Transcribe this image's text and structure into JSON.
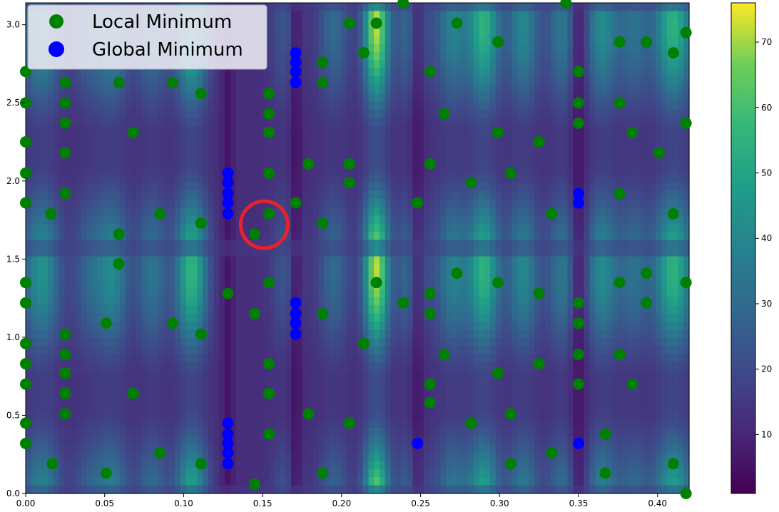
{
  "chart_data": {
    "type": "heatmap",
    "title": "",
    "xlabel": "",
    "ylabel": "",
    "xlim": [
      0.0,
      0.42
    ],
    "ylim": [
      0.0,
      3.14
    ],
    "xticks": [
      0.0,
      0.05,
      0.1,
      0.15,
      0.2,
      0.25,
      0.3,
      0.35,
      0.4
    ],
    "xtick_labels": [
      "0.00",
      "0.05",
      "0.10",
      "0.15",
      "0.20",
      "0.25",
      "0.30",
      "0.35",
      "0.40"
    ],
    "yticks": [
      0.0,
      0.5,
      1.0,
      1.5,
      2.0,
      2.5,
      3.0
    ],
    "ytick_labels": [
      "0.0",
      "0.5",
      "1.0",
      "1.5",
      "2.0",
      "2.5",
      "3.0"
    ],
    "colorbar": {
      "colormap": "viridis",
      "range": [
        1,
        76
      ],
      "ticks": [
        10,
        20,
        30,
        40,
        50,
        60,
        70
      ],
      "tick_labels": [
        "10",
        "20",
        "30",
        "40",
        "50",
        "60",
        "70"
      ]
    },
    "legend": {
      "placement": "top-left",
      "entries": [
        {
          "label": "Local Minimum",
          "color": "#008000"
        },
        {
          "label": "Global Minimum",
          "color": "#0000ff"
        }
      ]
    },
    "series": [
      {
        "name": "Local Minimum",
        "color": "#008000",
        "points": [
          [
            0.0,
            2.7
          ],
          [
            0.0,
            2.5
          ],
          [
            0.0,
            2.25
          ],
          [
            0.0,
            2.05
          ],
          [
            0.0,
            1.86
          ],
          [
            0.0,
            1.35
          ],
          [
            0.0,
            1.22
          ],
          [
            0.0,
            0.96
          ],
          [
            0.0,
            0.83
          ],
          [
            0.0,
            0.7
          ],
          [
            0.0,
            0.45
          ],
          [
            0.0,
            0.32
          ],
          [
            0.016,
            1.79
          ],
          [
            0.017,
            0.19
          ],
          [
            0.025,
            2.63
          ],
          [
            0.025,
            2.5
          ],
          [
            0.025,
            2.37
          ],
          [
            0.025,
            2.18
          ],
          [
            0.025,
            1.92
          ],
          [
            0.025,
            1.02
          ],
          [
            0.025,
            0.89
          ],
          [
            0.025,
            0.77
          ],
          [
            0.025,
            0.64
          ],
          [
            0.025,
            0.51
          ],
          [
            0.051,
            1.09
          ],
          [
            0.051,
            0.13
          ],
          [
            0.059,
            2.63
          ],
          [
            0.059,
            1.66
          ],
          [
            0.059,
            1.47
          ],
          [
            0.068,
            2.31
          ],
          [
            0.068,
            0.64
          ],
          [
            0.085,
            1.79
          ],
          [
            0.085,
            0.26
          ],
          [
            0.093,
            2.63
          ],
          [
            0.093,
            1.09
          ],
          [
            0.111,
            2.56
          ],
          [
            0.111,
            1.73
          ],
          [
            0.111,
            1.02
          ],
          [
            0.111,
            0.19
          ],
          [
            0.128,
            1.28
          ],
          [
            0.145,
            1.66
          ],
          [
            0.145,
            1.15
          ],
          [
            0.145,
            0.06
          ],
          [
            0.154,
            2.56
          ],
          [
            0.154,
            2.43
          ],
          [
            0.154,
            2.31
          ],
          [
            0.154,
            2.05
          ],
          [
            0.154,
            1.79
          ],
          [
            0.154,
            1.35
          ],
          [
            0.154,
            0.83
          ],
          [
            0.154,
            0.64
          ],
          [
            0.154,
            0.38
          ],
          [
            0.171,
            1.86
          ],
          [
            0.179,
            2.11
          ],
          [
            0.179,
            0.51
          ],
          [
            0.188,
            2.76
          ],
          [
            0.188,
            2.63
          ],
          [
            0.188,
            1.73
          ],
          [
            0.188,
            1.15
          ],
          [
            0.188,
            0.13
          ],
          [
            0.205,
            3.01
          ],
          [
            0.205,
            2.11
          ],
          [
            0.205,
            1.99
          ],
          [
            0.205,
            0.45
          ],
          [
            0.214,
            2.82
          ],
          [
            0.214,
            0.96
          ],
          [
            0.222,
            3.01
          ],
          [
            0.222,
            1.35
          ],
          [
            0.239,
            3.14
          ],
          [
            0.239,
            1.22
          ],
          [
            0.248,
            1.86
          ],
          [
            0.256,
            2.7
          ],
          [
            0.256,
            2.11
          ],
          [
            0.256,
            1.28
          ],
          [
            0.256,
            1.15
          ],
          [
            0.256,
            0.7
          ],
          [
            0.256,
            0.58
          ],
          [
            0.265,
            2.43
          ],
          [
            0.265,
            0.89
          ],
          [
            0.273,
            3.01
          ],
          [
            0.273,
            1.41
          ],
          [
            0.282,
            1.99
          ],
          [
            0.282,
            0.45
          ],
          [
            0.299,
            2.89
          ],
          [
            0.299,
            2.31
          ],
          [
            0.299,
            1.35
          ],
          [
            0.299,
            0.77
          ],
          [
            0.307,
            2.05
          ],
          [
            0.307,
            0.51
          ],
          [
            0.307,
            0.19
          ],
          [
            0.325,
            2.25
          ],
          [
            0.325,
            1.28
          ],
          [
            0.325,
            0.83
          ],
          [
            0.333,
            1.79
          ],
          [
            0.333,
            0.26
          ],
          [
            0.342,
            3.14
          ],
          [
            0.35,
            2.7
          ],
          [
            0.35,
            2.5
          ],
          [
            0.35,
            2.37
          ],
          [
            0.35,
            1.22
          ],
          [
            0.35,
            1.09
          ],
          [
            0.35,
            0.89
          ],
          [
            0.35,
            0.7
          ],
          [
            0.367,
            0.38
          ],
          [
            0.367,
            0.13
          ],
          [
            0.376,
            2.89
          ],
          [
            0.376,
            2.5
          ],
          [
            0.376,
            1.92
          ],
          [
            0.376,
            1.35
          ],
          [
            0.376,
            0.89
          ],
          [
            0.384,
            2.31
          ],
          [
            0.384,
            0.7
          ],
          [
            0.393,
            2.89
          ],
          [
            0.393,
            1.41
          ],
          [
            0.393,
            1.22
          ],
          [
            0.401,
            2.18
          ],
          [
            0.41,
            2.82
          ],
          [
            0.41,
            1.79
          ],
          [
            0.41,
            0.19
          ],
          [
            0.418,
            2.95
          ],
          [
            0.418,
            2.37
          ],
          [
            0.418,
            1.35
          ],
          [
            0.418,
            0.0
          ]
        ]
      },
      {
        "name": "Global Minimum",
        "color": "#0000ff",
        "points": [
          [
            0.128,
            2.05
          ],
          [
            0.128,
            1.99
          ],
          [
            0.128,
            1.92
          ],
          [
            0.128,
            1.86
          ],
          [
            0.128,
            1.79
          ],
          [
            0.128,
            0.45
          ],
          [
            0.128,
            0.38
          ],
          [
            0.128,
            0.32
          ],
          [
            0.128,
            0.26
          ],
          [
            0.128,
            0.19
          ],
          [
            0.171,
            2.82
          ],
          [
            0.171,
            2.76
          ],
          [
            0.171,
            2.7
          ],
          [
            0.171,
            2.63
          ],
          [
            0.171,
            1.22
          ],
          [
            0.171,
            1.15
          ],
          [
            0.171,
            1.09
          ],
          [
            0.171,
            1.02
          ],
          [
            0.248,
            0.32
          ],
          [
            0.35,
            1.92
          ],
          [
            0.35,
            1.86
          ],
          [
            0.35,
            0.32
          ]
        ]
      }
    ],
    "annotation": {
      "shape": "circle",
      "color": "#e8222d",
      "center": [
        0.151,
        1.72
      ]
    },
    "intensity_field": {
      "base": 12,
      "x_repeat_period": 0.42,
      "y_period": 1.571,
      "vertical_streaks": [
        {
          "x": 0.01,
          "level": 44,
          "width": 0.012
        },
        {
          "x": 0.04,
          "level": 28,
          "width": 0.01
        },
        {
          "x": 0.055,
          "level": 40,
          "width": 0.01
        },
        {
          "x": 0.08,
          "level": 34,
          "width": 0.01
        },
        {
          "x": 0.105,
          "level": 56,
          "width": 0.01
        },
        {
          "x": 0.165,
          "level": 24,
          "width": 0.01
        },
        {
          "x": 0.195,
          "level": 30,
          "width": 0.01
        },
        {
          "x": 0.222,
          "level": 72,
          "width": 0.008
        },
        {
          "x": 0.245,
          "level": 34,
          "width": 0.01
        },
        {
          "x": 0.27,
          "level": 38,
          "width": 0.01
        },
        {
          "x": 0.29,
          "level": 55,
          "width": 0.01
        },
        {
          "x": 0.315,
          "level": 40,
          "width": 0.01
        },
        {
          "x": 0.34,
          "level": 35,
          "width": 0.01
        },
        {
          "x": 0.365,
          "level": 42,
          "width": 0.01
        },
        {
          "x": 0.385,
          "level": 32,
          "width": 0.01
        },
        {
          "x": 0.41,
          "level": 55,
          "width": 0.012
        }
      ],
      "dark_streaks": [
        {
          "x": 0.128,
          "level": 3,
          "width": 0.004
        },
        {
          "x": 0.171,
          "level": 2,
          "width": 0.004
        },
        {
          "x": 0.248,
          "level": 3,
          "width": 0.005
        },
        {
          "x": 0.35,
          "level": 3,
          "width": 0.005
        }
      ]
    }
  }
}
